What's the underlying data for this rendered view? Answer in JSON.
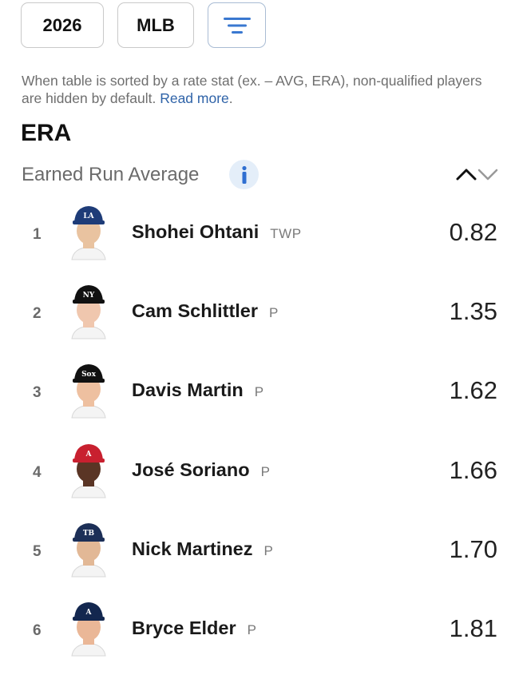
{
  "filters": {
    "season": "2026",
    "league": "MLB"
  },
  "note": {
    "text": "When table is sorted by a rate stat (ex. – AVG, ERA), non-qualified players are hidden by default.",
    "link": "Read more",
    "suffix": "."
  },
  "stat": {
    "abbr": "ERA",
    "name": "Earned Run Average"
  },
  "players": [
    {
      "rank": "1",
      "name": "Shohei Ohtani",
      "pos": "TWP",
      "value": "0.82",
      "cap": "#1e3c78",
      "logo": "LA",
      "skin": "#e9c3a0"
    },
    {
      "rank": "2",
      "name": "Cam Schlittler",
      "pos": "P",
      "value": "1.35",
      "cap": "#111111",
      "logo": "NY",
      "skin": "#f0c7ae"
    },
    {
      "rank": "3",
      "name": "Davis Martin",
      "pos": "P",
      "value": "1.62",
      "cap": "#111111",
      "logo": "Sox",
      "skin": "#eec0a0"
    },
    {
      "rank": "4",
      "name": "José Soriano",
      "pos": "P",
      "value": "1.66",
      "cap": "#c8202f",
      "logo": "A",
      "skin": "#5a3525"
    },
    {
      "rank": "5",
      "name": "Nick Martinez",
      "pos": "P",
      "value": "1.70",
      "cap": "#1c2f57",
      "logo": "TB",
      "skin": "#e2b896"
    },
    {
      "rank": "6",
      "name": "Bryce Elder",
      "pos": "P",
      "value": "1.81",
      "cap": "#13274f",
      "logo": "A",
      "skin": "#eab797"
    }
  ]
}
